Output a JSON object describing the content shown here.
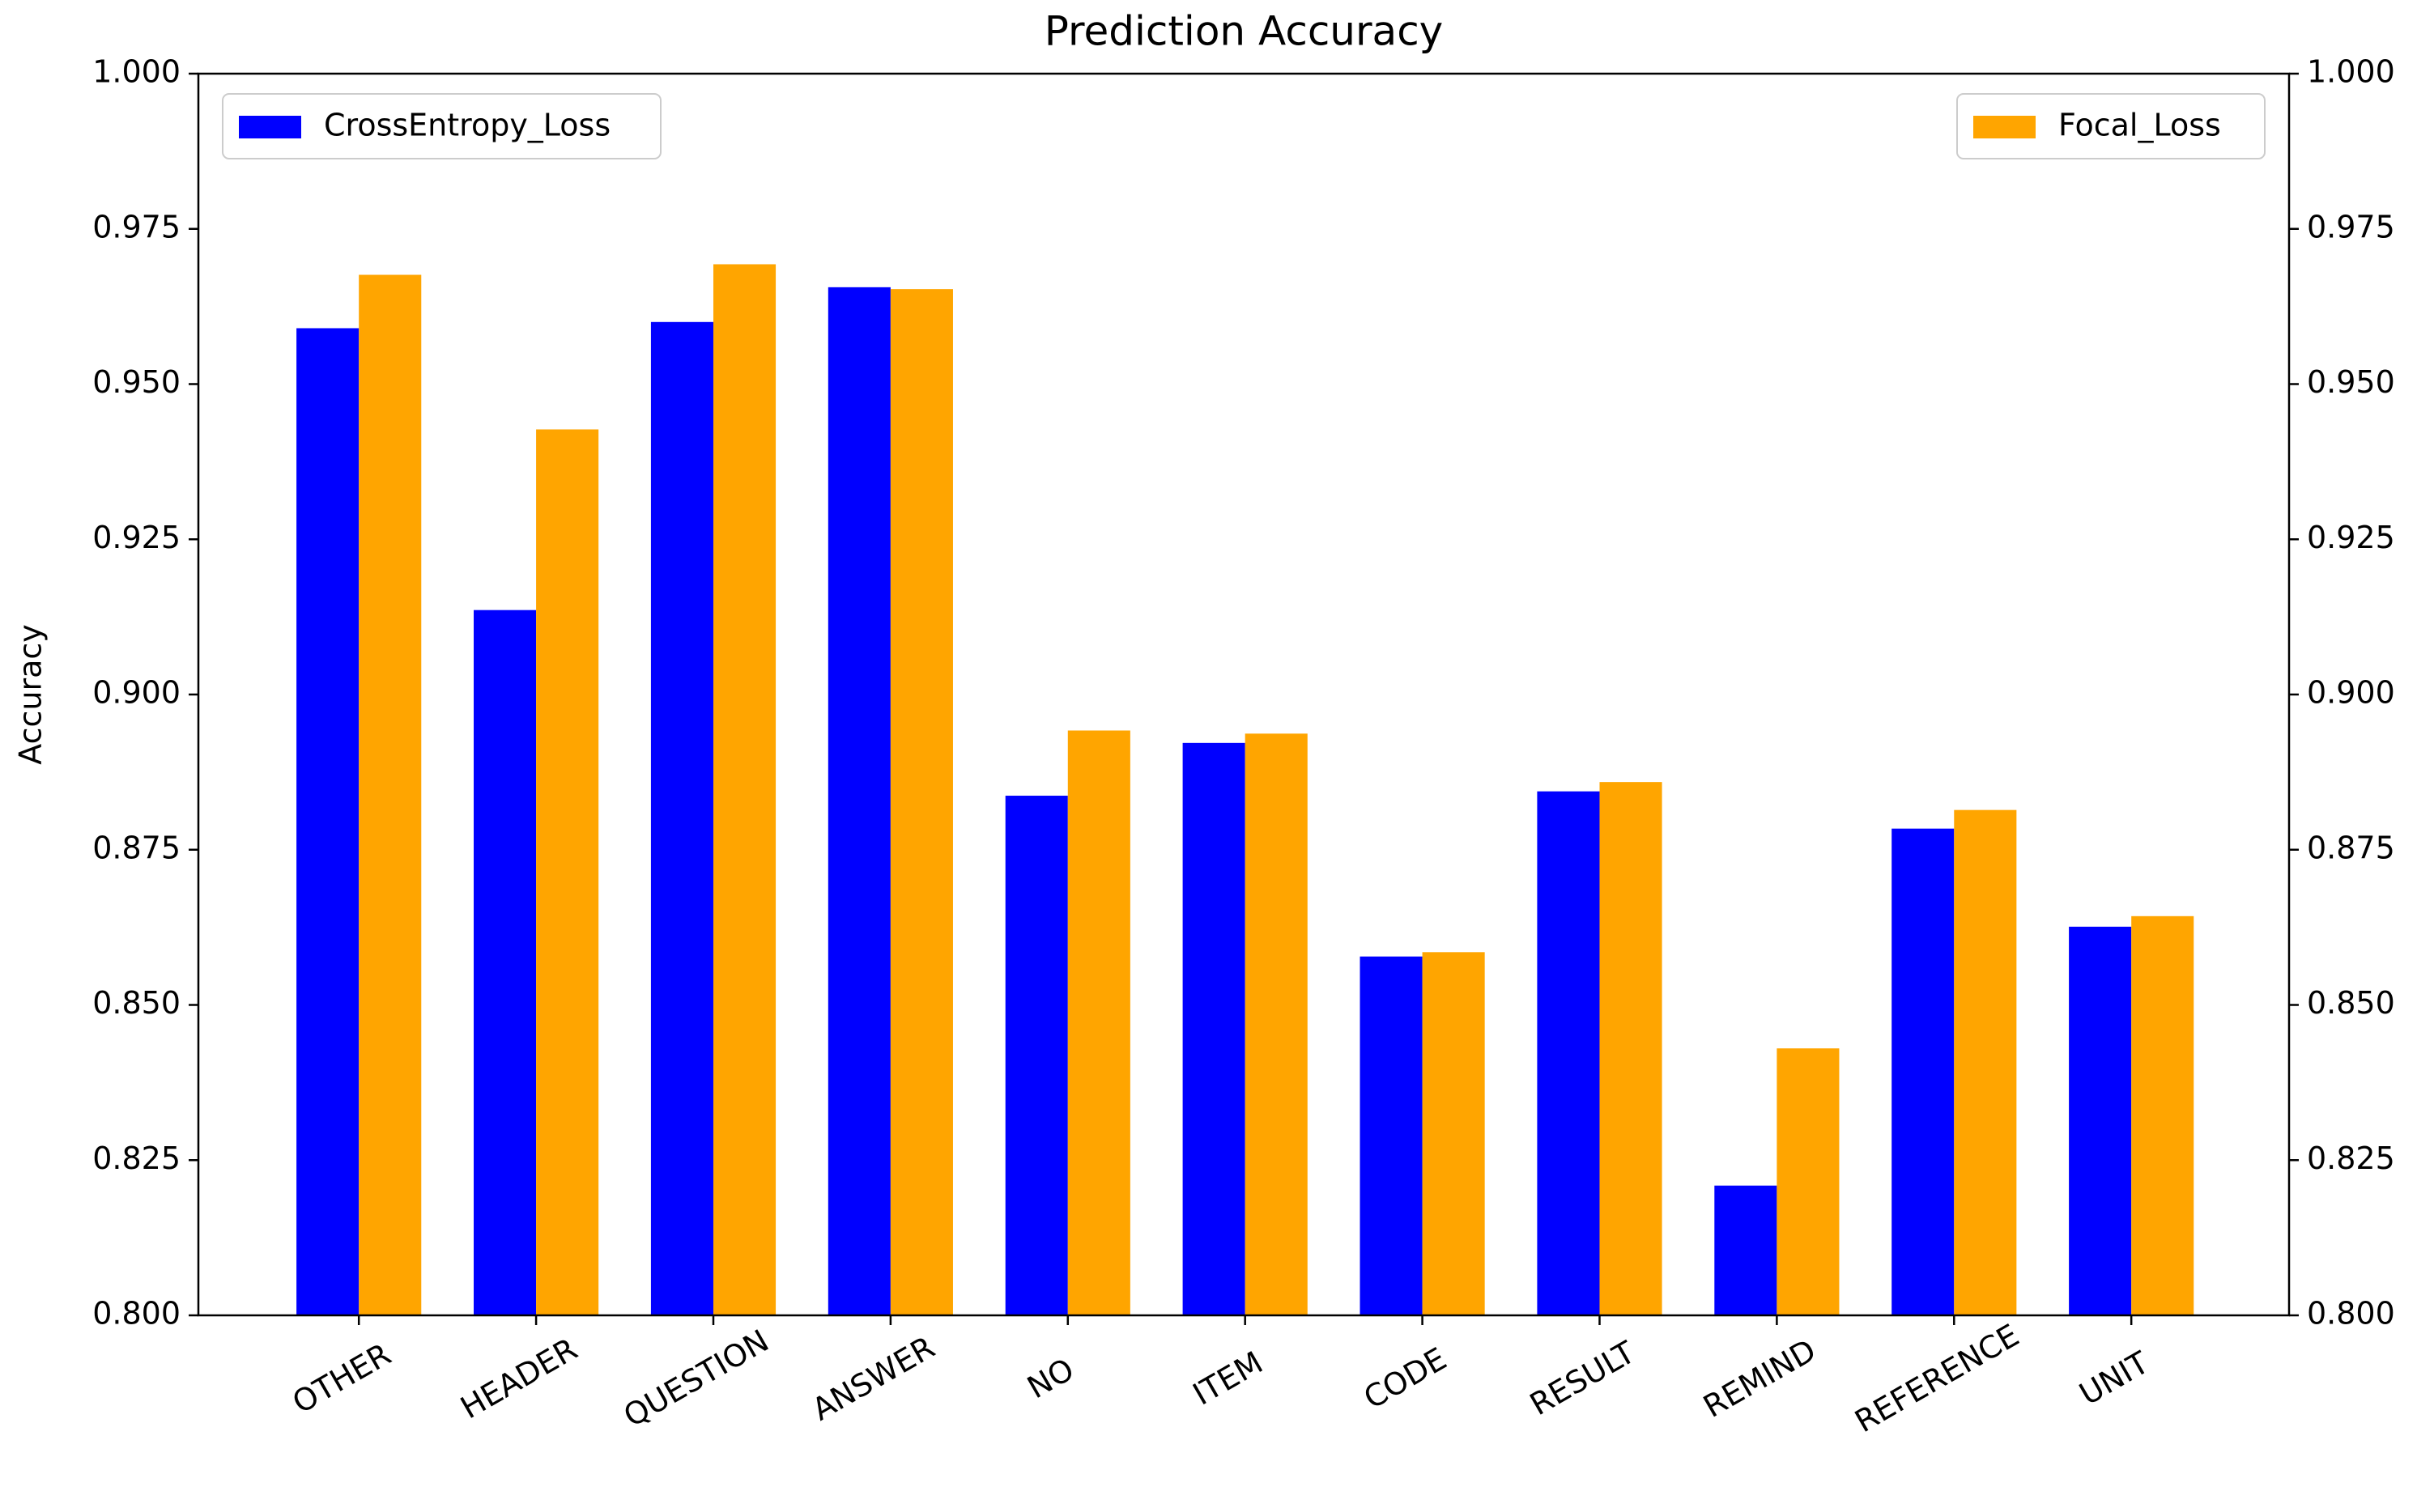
{
  "chart_data": {
    "type": "bar",
    "title": "Prediction Accuracy",
    "y_label": "Accuracy",
    "categories": [
      "OTHER",
      "HEADER",
      "QUESTION",
      "ANSWER",
      "NO",
      "ITEM",
      "CODE",
      "RESULT",
      "REMIND",
      "REFERENCE",
      "UNIT"
    ],
    "series": [
      {
        "name": "CrossEntropy_Loss",
        "color": "#0000ff",
        "legend": "upper left",
        "values": [
          0.959,
          0.9136,
          0.96,
          0.9656,
          0.8837,
          0.8922,
          0.8578,
          0.8844,
          0.8209,
          0.8784,
          0.8626
        ]
      },
      {
        "name": "Focal_Loss",
        "color": "#ffa500",
        "axis": "y2",
        "legend": "upper right",
        "values": [
          0.9676,
          0.9427,
          0.9693,
          0.9653,
          0.8942,
          0.8937,
          0.8585,
          0.8859,
          0.843,
          0.8814,
          0.8643
        ]
      }
    ],
    "ylim": [
      0.8,
      1.0
    ],
    "yticks": [
      {
        "value": 0.8,
        "label": "0.800"
      },
      {
        "value": 0.825,
        "label": "0.825"
      },
      {
        "value": 0.85,
        "label": "0.850"
      },
      {
        "value": 0.875,
        "label": "0.875"
      },
      {
        "value": 0.9,
        "label": "0.900"
      },
      {
        "value": 0.925,
        "label": "0.925"
      },
      {
        "value": 0.95,
        "label": "0.950"
      },
      {
        "value": 0.975,
        "label": "0.975"
      },
      {
        "value": 1.0,
        "label": "1.000"
      }
    ],
    "y2lim": [
      0.8,
      1.0
    ],
    "y2ticks": [
      {
        "value": 0.8,
        "label": "0.800"
      },
      {
        "value": 0.825,
        "label": "0.825"
      },
      {
        "value": 0.85,
        "label": "0.850"
      },
      {
        "value": 0.875,
        "label": "0.875"
      },
      {
        "value": 0.9,
        "label": "0.900"
      },
      {
        "value": 0.925,
        "label": "0.925"
      },
      {
        "value": 0.95,
        "label": "0.950"
      },
      {
        "value": 0.975,
        "label": "0.975"
      },
      {
        "value": 1.0,
        "label": "1.000"
      }
    ],
    "grid": false
  }
}
